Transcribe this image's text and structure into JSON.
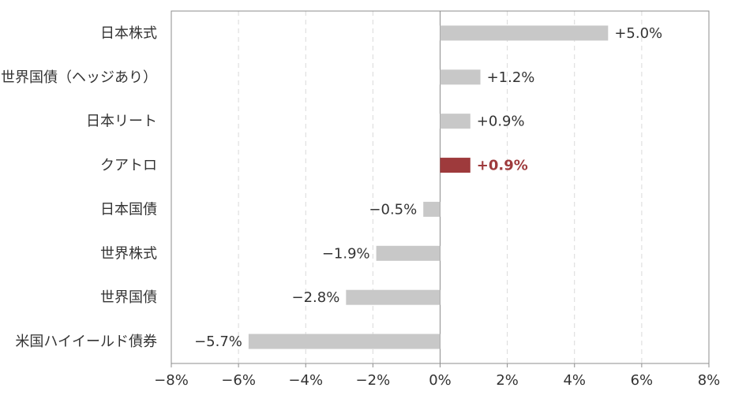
{
  "chart_data": {
    "type": "bar",
    "orientation": "horizontal",
    "categories": [
      "日本株式",
      "世界国債（ヘッジあり）",
      "日本リート",
      "クアトロ",
      "日本国債",
      "世界株式",
      "世界国債",
      "米国ハイイールド債券"
    ],
    "values": [
      5.0,
      1.2,
      0.9,
      0.9,
      -0.5,
      -1.9,
      -2.8,
      -5.7
    ],
    "value_labels": [
      "+5.0%",
      "+1.2%",
      "+0.9%",
      "+0.9%",
      "−0.5%",
      "−1.9%",
      "−2.8%",
      "−5.7%"
    ],
    "highlight_index": 3,
    "xlim": [
      -8,
      8
    ],
    "x_ticks": [
      -8,
      -6,
      -4,
      -2,
      0,
      2,
      4,
      6,
      8
    ],
    "x_tick_labels": [
      "−8%",
      "−6%",
      "−4%",
      "−2%",
      "0%",
      "2%",
      "4%",
      "6%",
      "8%"
    ],
    "grid": true,
    "colors": {
      "bar": "#c8c8c8",
      "highlight": "#9e3a3c"
    }
  }
}
